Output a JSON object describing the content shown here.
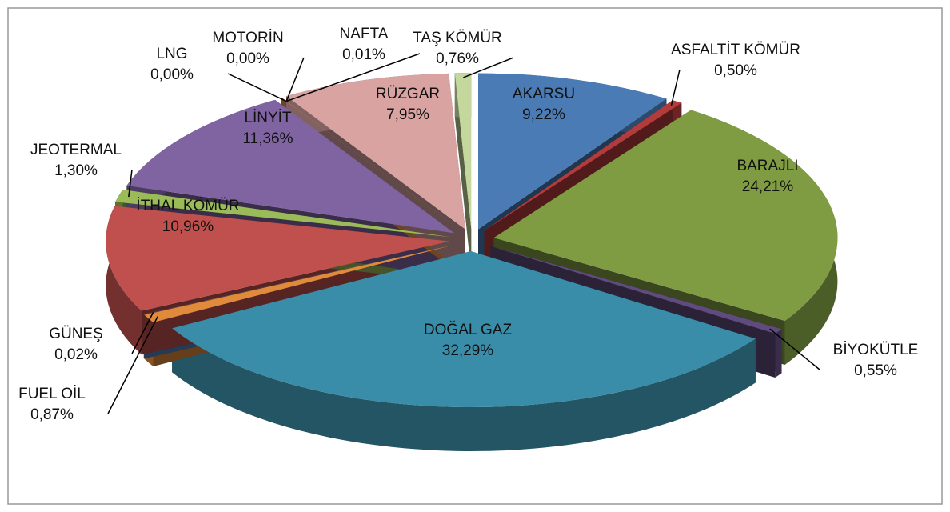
{
  "chart_data": {
    "type": "pie",
    "categories": [
      "AKARSU",
      "ASFALTİT KÖMÜR",
      "BARAJLI",
      "BİYOKÜTLE",
      "DOĞAL GAZ",
      "FUEL OİL",
      "GÜNEŞ",
      "İTHAL KÖMÜR",
      "JEOTERMAL",
      "LİNYİT",
      "LNG",
      "MOTORİN",
      "NAFTA",
      "RÜZGAR",
      "TAŞ KÖMÜR"
    ],
    "values": [
      9.22,
      0.5,
      24.21,
      0.55,
      32.29,
      0.87,
      0.02,
      10.96,
      1.3,
      11.36,
      0.0,
      0.0,
      0.01,
      7.95,
      0.76
    ],
    "value_labels": [
      "9,22%",
      "0,50%",
      "24,21%",
      "0,55%",
      "32,29%",
      "0,87%",
      "0,02%",
      "10,96%",
      "1,30%",
      "11,36%",
      "0,00%",
      "0,00%",
      "0,01%",
      "7,95%",
      "0,76%"
    ],
    "colors": [
      "#4a7bb5",
      "#b33b3b",
      "#7f9c42",
      "#5f4b7d",
      "#3a8da9",
      "#e08a3c",
      "#4f81bd",
      "#c0504d",
      "#9bbb59",
      "#8064a2",
      "#4bacc6",
      "#2c6c7b",
      "#f79646",
      "#d9a3a2",
      "#c4d79c"
    ]
  }
}
